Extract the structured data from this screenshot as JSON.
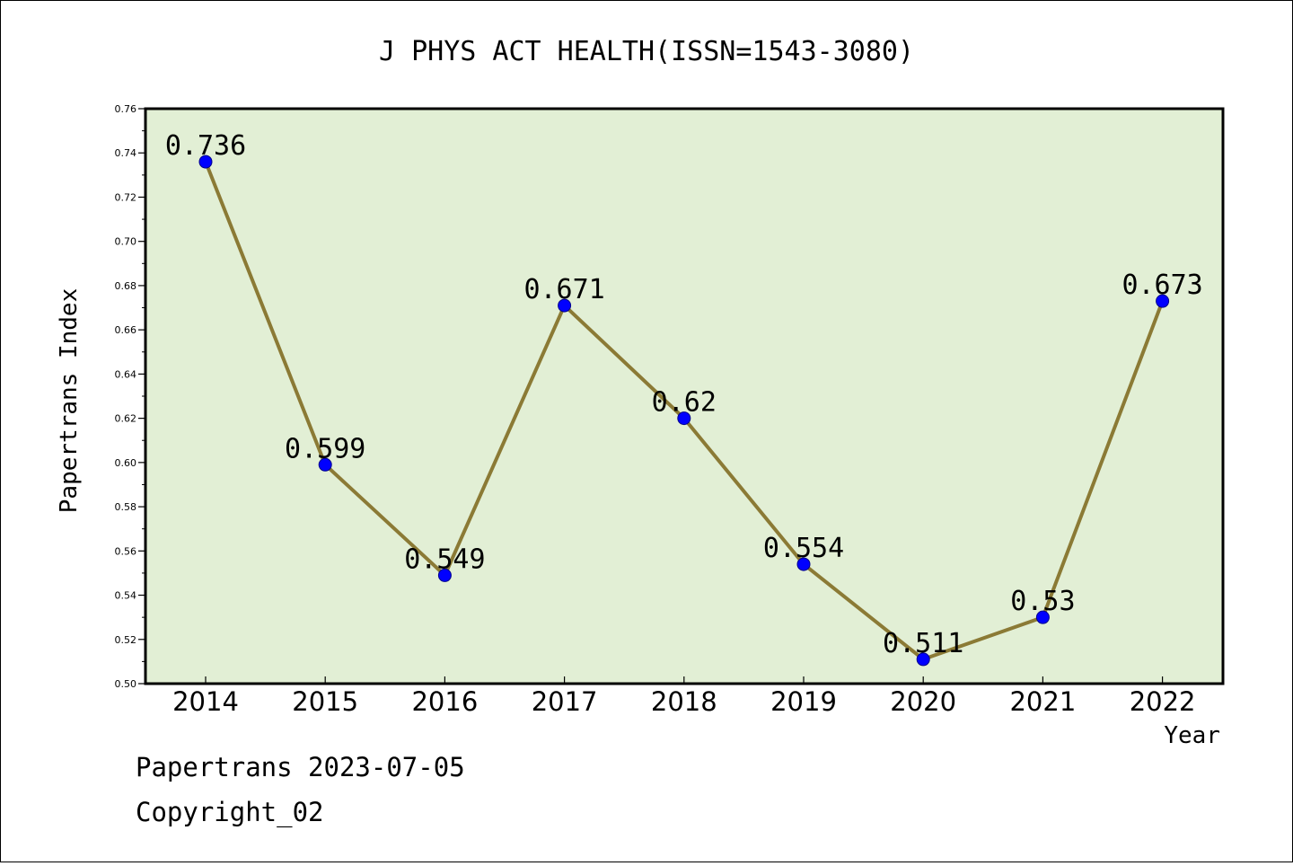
{
  "chart_data": {
    "type": "line",
    "title": "J PHYS ACT HEALTH(ISSN=1543-3080)",
    "xlabel": "Year",
    "ylabel": "Papertrans Index",
    "categories": [
      "2014",
      "2015",
      "2016",
      "2017",
      "2018",
      "2019",
      "2020",
      "2021",
      "2022"
    ],
    "values": [
      0.736,
      0.599,
      0.549,
      0.671,
      0.62,
      0.554,
      0.511,
      0.53,
      0.673
    ],
    "data_labels": [
      "0.736",
      "0.599",
      "0.549",
      "0.671",
      "0.62",
      "0.554",
      "0.511",
      "0.53",
      "0.673"
    ],
    "ylim": [
      0.5,
      0.76
    ],
    "yticks": [
      "0.50",
      "0.52",
      "0.54",
      "0.56",
      "0.58",
      "0.60",
      "0.62",
      "0.64",
      "0.66",
      "0.68",
      "0.70",
      "0.72",
      "0.74",
      "0.76"
    ],
    "grid": false,
    "colors": {
      "plot_background": "#e2efd5",
      "line": "#8b7a35",
      "marker": "#0000ff"
    }
  },
  "footer": {
    "date_line": "Papertrans 2023-07-05",
    "copyright": "Copyright_02"
  }
}
